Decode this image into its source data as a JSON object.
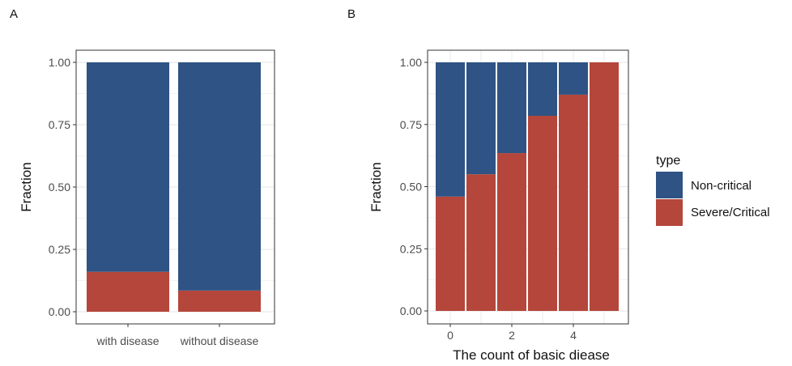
{
  "colors": {
    "non_critical": "#2e5384",
    "severe_critical": "#b5463b",
    "grid": "#e6e6e6"
  },
  "legend": {
    "title": "type",
    "items": [
      {
        "label": "Non-critical",
        "color": "#2e5384"
      },
      {
        "label": "Severe/Critical",
        "color": "#b5463b"
      }
    ]
  },
  "chart_data": [
    {
      "panel": "A",
      "type": "bar",
      "stacked": true,
      "categories": [
        "with disease",
        "without disease"
      ],
      "series": [
        {
          "name": "Severe/Critical",
          "values": [
            0.16,
            0.085
          ]
        },
        {
          "name": "Non-critical",
          "values": [
            0.84,
            0.915
          ]
        }
      ],
      "ylabel": "Fraction",
      "xlabel": "",
      "ylim": [
        0,
        1
      ],
      "yticks": [
        "0.00",
        "0.25",
        "0.50",
        "0.75",
        "1.00"
      ],
      "grid": true
    },
    {
      "panel": "B",
      "type": "bar",
      "stacked": true,
      "x": [
        0,
        1,
        2,
        3,
        4,
        5
      ],
      "series": [
        {
          "name": "Severe/Critical",
          "values": [
            0.46,
            0.55,
            0.635,
            0.785,
            0.87,
            1.0
          ]
        },
        {
          "name": "Non-critical",
          "values": [
            0.54,
            0.45,
            0.365,
            0.215,
            0.13,
            0.0
          ]
        }
      ],
      "xlabel": "The count of basic diease",
      "ylabel": "Fraction",
      "ylim": [
        0,
        1
      ],
      "xlim": [
        -0.5,
        5.5
      ],
      "xticks": [
        "0",
        "2",
        "4"
      ],
      "yticks": [
        "0.00",
        "0.25",
        "0.50",
        "0.75",
        "1.00"
      ],
      "grid": true
    }
  ]
}
